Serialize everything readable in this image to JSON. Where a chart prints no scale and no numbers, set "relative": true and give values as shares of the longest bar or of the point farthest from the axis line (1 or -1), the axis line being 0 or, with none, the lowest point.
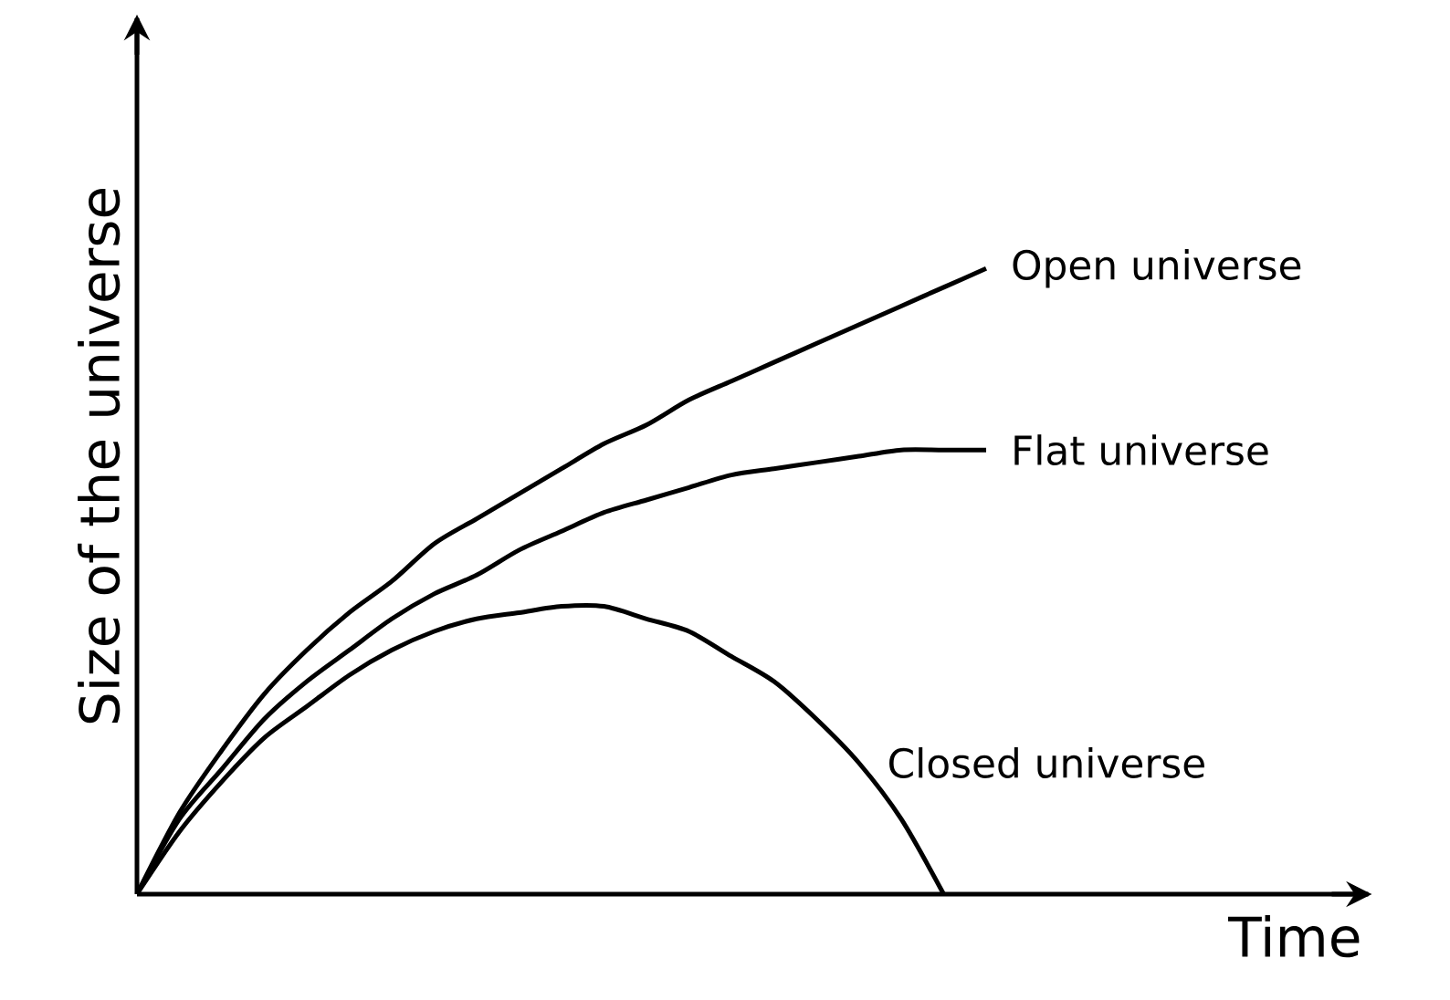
{
  "chart_data": {
    "type": "line",
    "relative": true,
    "xlabel": "Time",
    "ylabel": "Size of the universe",
    "categories": [
      null,
      null,
      null,
      null,
      null,
      null,
      null,
      null,
      null,
      null,
      null,
      null,
      null,
      null,
      null,
      null,
      null,
      null,
      null,
      null,
      null
    ],
    "series": [
      {
        "name": "Open universe",
        "color": "#000000",
        "values": [
          0,
          0.13,
          0.23,
          0.32,
          0.39,
          0.45,
          0.5,
          0.56,
          0.6,
          0.64,
          0.68,
          0.72,
          0.75,
          0.79,
          0.82,
          0.85,
          0.88,
          0.91,
          0.94,
          0.97,
          1
        ]
      },
      {
        "name": "Flat universe",
        "color": "#000000",
        "values": [
          0,
          0.12,
          0.2,
          0.28,
          0.34,
          0.39,
          0.44,
          0.48,
          0.51,
          0.55,
          0.58,
          0.61,
          0.63,
          0.65,
          0.67,
          0.68,
          0.69,
          0.7,
          0.71,
          0.71,
          0.71
        ]
      },
      {
        "name": "Closed universe",
        "color": "#000000",
        "values": [
          0,
          0.1,
          0.18,
          0.25,
          0.3,
          0.35,
          0.39,
          0.42,
          0.44,
          0.45,
          0.46,
          0.46,
          0.44,
          0.42,
          0.38,
          0.34,
          0.28,
          0.21,
          0.12,
          0,
          null
        ]
      }
    ]
  }
}
